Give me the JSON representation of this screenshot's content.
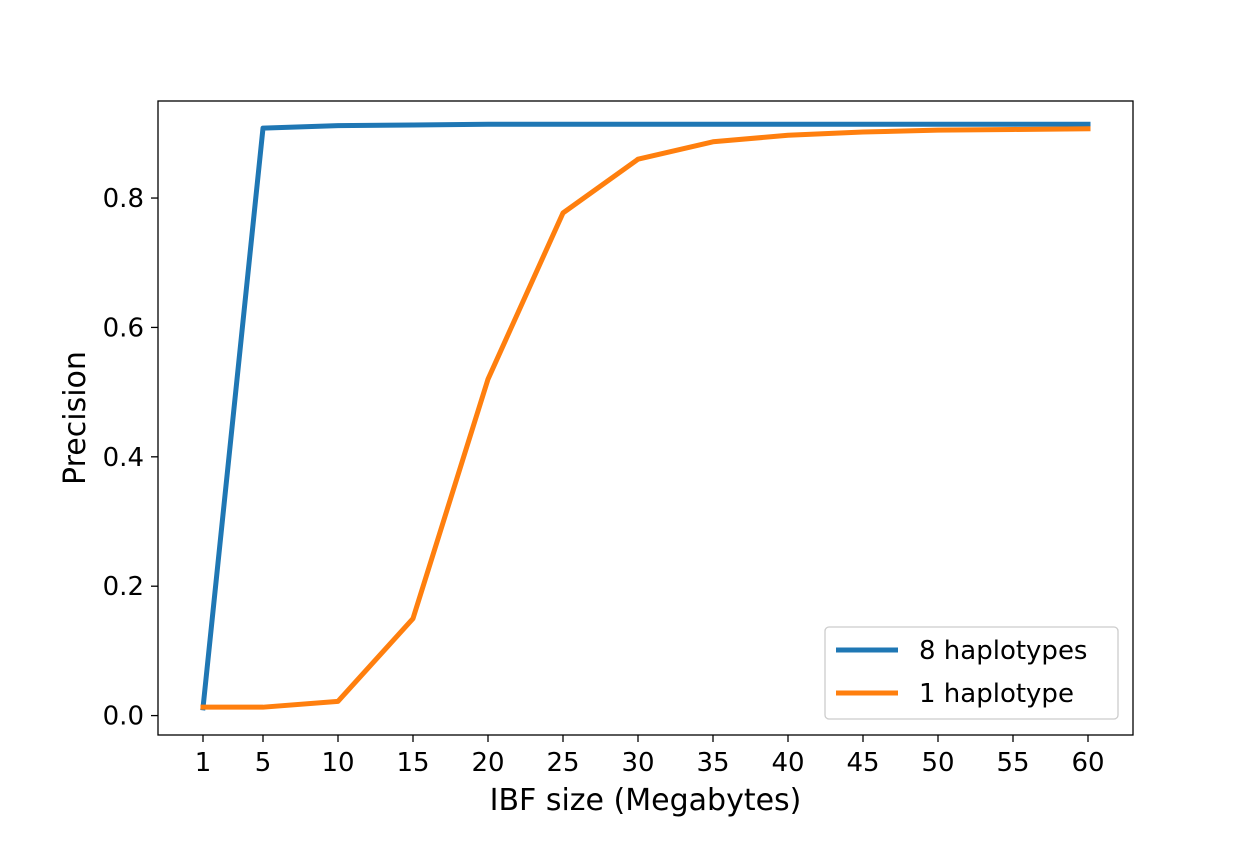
{
  "chart_data": {
    "type": "line",
    "title": "",
    "xlabel": "IBF size (Megabytes)",
    "ylabel": "Precision",
    "x": [
      1,
      5,
      10,
      15,
      20,
      25,
      30,
      35,
      40,
      45,
      50,
      55,
      60
    ],
    "x_ticks": [
      "1",
      "5",
      "10",
      "15",
      "20",
      "25",
      "30",
      "35",
      "40",
      "45",
      "50",
      "55",
      "60"
    ],
    "y_ticks": [
      "0.0",
      "0.2",
      "0.4",
      "0.6",
      "0.8"
    ],
    "y_tick_values": [
      0.0,
      0.2,
      0.4,
      0.6,
      0.8
    ],
    "xlim": [
      -2,
      63
    ],
    "ylim": [
      -0.03,
      0.95
    ],
    "grid": false,
    "legend_position": "lower-right",
    "series": [
      {
        "name": "8 haplotypes",
        "color": "#1f77b4",
        "values": [
          0.012,
          0.908,
          0.912,
          0.913,
          0.914,
          0.914,
          0.914,
          0.914,
          0.914,
          0.914,
          0.914,
          0.914,
          0.914
        ]
      },
      {
        "name": "1 haplotype",
        "color": "#ff7f0e",
        "values": [
          0.013,
          0.013,
          0.022,
          0.15,
          0.52,
          0.777,
          0.86,
          0.887,
          0.897,
          0.902,
          0.905,
          0.906,
          0.907
        ]
      }
    ]
  }
}
